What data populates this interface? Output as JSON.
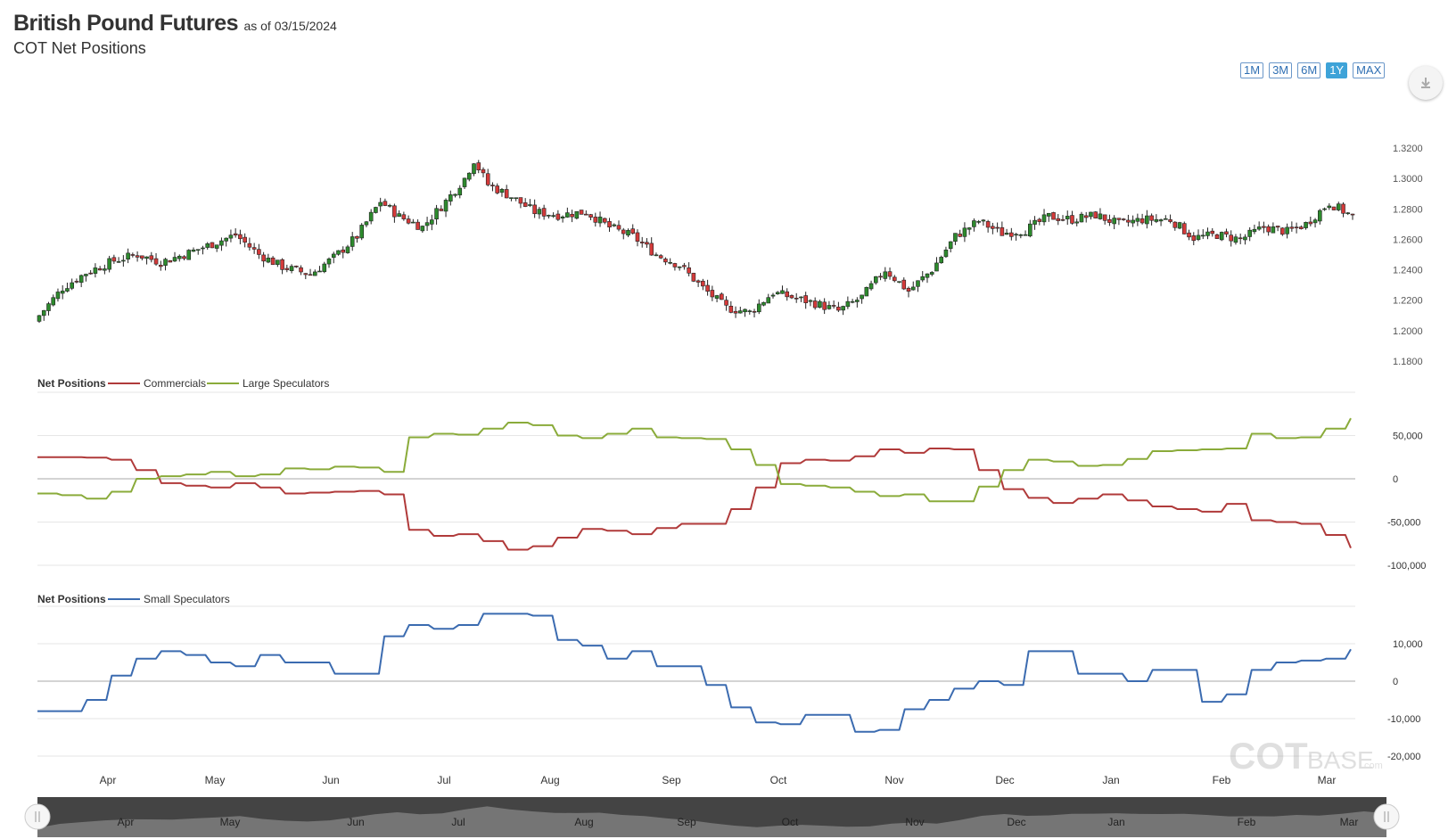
{
  "header": {
    "title": "British Pound Futures",
    "as_of": "as of 03/15/2024",
    "subtitle": "COT Net Positions"
  },
  "range_buttons": [
    {
      "label": "1M",
      "active": false
    },
    {
      "label": "3M",
      "active": false
    },
    {
      "label": "6M",
      "active": false
    },
    {
      "label": "1Y",
      "active": true
    },
    {
      "label": "MAX",
      "active": false
    }
  ],
  "export_icon": "download-icon",
  "colors": {
    "up": "#2d8a2d",
    "down": "#d43a3a",
    "commercials": "#b03a3a",
    "large_speculators": "#8aab3a",
    "small_speculators": "#3b6bb0",
    "button_active": "#3ea3d8",
    "navigator_fill": "#444444"
  },
  "watermark": {
    "main": "COT",
    "sub": "BASE",
    "tld": ".com"
  },
  "navigator_months": [
    "Apr",
    "May",
    "Jun",
    "Jul",
    "Aug",
    "Sep",
    "Oct",
    "Nov",
    "Dec",
    "Jan",
    "Feb",
    "Mar"
  ],
  "chart_data": [
    {
      "type": "candlestick",
      "title": "",
      "x_labels": [
        "Apr",
        "May",
        "Jun",
        "Jul",
        "Aug",
        "Sep",
        "Oct",
        "Nov",
        "Dec",
        "Jan",
        "Feb",
        "Mar"
      ],
      "y_ticks": [
        "1.3200",
        "1.3000",
        "1.2800",
        "1.2600",
        "1.2400",
        "1.2200",
        "1.2000",
        "1.1800"
      ],
      "ylim": [
        1.18,
        1.32
      ],
      "close_path": [
        [
          0,
          1.21
        ],
        [
          5,
          1.228
        ],
        [
          10,
          1.238
        ],
        [
          16,
          1.246
        ],
        [
          21,
          1.25
        ],
        [
          26,
          1.245
        ],
        [
          31,
          1.25
        ],
        [
          37,
          1.257
        ],
        [
          42,
          1.263
        ],
        [
          47,
          1.25
        ],
        [
          52,
          1.242
        ],
        [
          58,
          1.237
        ],
        [
          63,
          1.248
        ],
        [
          68,
          1.262
        ],
        [
          73,
          1.285
        ],
        [
          77,
          1.275
        ],
        [
          82,
          1.268
        ],
        [
          87,
          1.285
        ],
        [
          91,
          1.3
        ],
        [
          93,
          1.312
        ],
        [
          96,
          1.296
        ],
        [
          101,
          1.288
        ],
        [
          106,
          1.278
        ],
        [
          111,
          1.276
        ],
        [
          117,
          1.278
        ],
        [
          122,
          1.268
        ],
        [
          127,
          1.262
        ],
        [
          132,
          1.25
        ],
        [
          137,
          1.243
        ],
        [
          142,
          1.228
        ],
        [
          147,
          1.215
        ],
        [
          152,
          1.212
        ],
        [
          157,
          1.225
        ],
        [
          161,
          1.222
        ],
        [
          166,
          1.218
        ],
        [
          171,
          1.213
        ],
        [
          176,
          1.222
        ],
        [
          181,
          1.24
        ],
        [
          186,
          1.226
        ],
        [
          191,
          1.24
        ],
        [
          196,
          1.262
        ],
        [
          201,
          1.272
        ],
        [
          206,
          1.264
        ],
        [
          211,
          1.266
        ],
        [
          216,
          1.275
        ],
        [
          221,
          1.273
        ],
        [
          226,
          1.276
        ],
        [
          231,
          1.27
        ],
        [
          236,
          1.273
        ],
        [
          242,
          1.273
        ],
        [
          247,
          1.261
        ],
        [
          252,
          1.263
        ],
        [
          257,
          1.26
        ],
        [
          262,
          1.268
        ],
        [
          267,
          1.265
        ],
        [
          271,
          1.27
        ],
        [
          276,
          1.284
        ],
        [
          281,
          1.275
        ]
      ],
      "candle_count": 282
    },
    {
      "type": "line",
      "title": "Net Positions",
      "series": [
        {
          "name": "Commercials",
          "values": [
            25000,
            25000,
            24500,
            22000,
            10000,
            -5000,
            -8000,
            -10000,
            -5000,
            -10000,
            -17000,
            -16000,
            -15000,
            -14000,
            -18000,
            -59000,
            -66000,
            -64000,
            -72000,
            -82000,
            -78000,
            -68000,
            -58000,
            -60000,
            -64000,
            -57000,
            -52000,
            -52000,
            -35000,
            -10000,
            18000,
            22000,
            21000,
            26000,
            34000,
            30000,
            35000,
            34000,
            10000,
            -12000,
            -22000,
            -28000,
            -23000,
            -18000,
            -25000,
            -32000,
            -35000,
            -38000,
            -29000,
            -48000,
            -50000,
            -52000,
            -65000,
            -80000
          ]
        },
        {
          "name": "Large Speculators",
          "values": [
            -17000,
            -19000,
            -23000,
            -15000,
            0,
            3000,
            5000,
            8000,
            3000,
            5000,
            12000,
            11000,
            14000,
            13000,
            8000,
            48000,
            52000,
            51000,
            58000,
            65000,
            62000,
            50000,
            47000,
            52000,
            58000,
            48000,
            47000,
            46000,
            34000,
            16000,
            -6000,
            -8000,
            -10000,
            -15000,
            -20000,
            -18000,
            -26000,
            -26000,
            -9000,
            10000,
            22000,
            20000,
            15000,
            16000,
            23000,
            32000,
            33000,
            34000,
            35000,
            52000,
            47000,
            48000,
            58000,
            70000
          ]
        }
      ],
      "y_ticks": [
        "50,000",
        "0",
        "-50,000",
        "-100,000"
      ],
      "ylim": [
        -100000,
        100000
      ]
    },
    {
      "type": "line",
      "title": "Net Positions",
      "series": [
        {
          "name": "Small Speculators",
          "values": [
            -8000,
            -8000,
            -5000,
            1500,
            6000,
            8000,
            7000,
            5000,
            4000,
            7000,
            5000,
            5000,
            2000,
            2000,
            12000,
            15000,
            14000,
            15000,
            18000,
            18000,
            17500,
            11000,
            9500,
            6000,
            8000,
            4000,
            4000,
            -1000,
            -7000,
            -11000,
            -11500,
            -9000,
            -9000,
            -13500,
            -13000,
            -7500,
            -5000,
            -2000,
            0,
            -1000,
            8000,
            8000,
            2000,
            2000,
            0,
            3000,
            3000,
            -5500,
            -3500,
            3000,
            5000,
            5500,
            6000,
            8500
          ]
        }
      ],
      "y_ticks": [
        "10,000",
        "0",
        "-10,000",
        "-20,000"
      ],
      "ylim": [
        -20000,
        20000
      ]
    }
  ]
}
